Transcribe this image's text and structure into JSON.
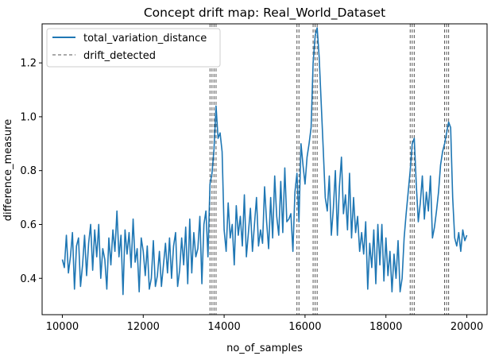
{
  "chart_data": {
    "type": "line",
    "title": "Concept drift map: Real_World_Dataset",
    "xlabel": "no_of_samples",
    "ylabel": "difference_measure",
    "xlim": [
      9500,
      20500
    ],
    "ylim": [
      0.265,
      1.345
    ],
    "xticks": [
      10000,
      12000,
      14000,
      16000,
      18000,
      20000
    ],
    "yticks": [
      0.4,
      0.6,
      0.8,
      1.0,
      1.2
    ],
    "ytick_labels": [
      "0.4",
      "0.6",
      "0.8",
      "1.0",
      "1.2"
    ],
    "grid": false,
    "legend_position": "upper-left",
    "series": [
      {
        "name": "total_variation_distance",
        "color": "#1f77b4",
        "style": "solid",
        "x": [
          10000,
          10050,
          10100,
          10150,
          10200,
          10250,
          10300,
          10350,
          10400,
          10450,
          10500,
          10550,
          10600,
          10650,
          10700,
          10750,
          10800,
          10850,
          10900,
          10950,
          11000,
          11050,
          11100,
          11150,
          11200,
          11250,
          11300,
          11350,
          11400,
          11450,
          11500,
          11550,
          11600,
          11650,
          11700,
          11750,
          11800,
          11850,
          11900,
          11950,
          12000,
          12050,
          12100,
          12150,
          12200,
          12250,
          12300,
          12350,
          12400,
          12450,
          12500,
          12550,
          12600,
          12650,
          12700,
          12750,
          12800,
          12850,
          12900,
          12950,
          13000,
          13050,
          13100,
          13150,
          13200,
          13250,
          13300,
          13350,
          13400,
          13450,
          13500,
          13550,
          13600,
          13650,
          13700,
          13750,
          13800,
          13850,
          13900,
          13950,
          14000,
          14050,
          14100,
          14150,
          14200,
          14250,
          14300,
          14350,
          14400,
          14450,
          14500,
          14550,
          14600,
          14650,
          14700,
          14750,
          14800,
          14850,
          14900,
          14950,
          15000,
          15050,
          15100,
          15150,
          15200,
          15250,
          15300,
          15350,
          15400,
          15450,
          15500,
          15550,
          15600,
          15650,
          15700,
          15750,
          15800,
          15850,
          15900,
          15950,
          16000,
          16050,
          16100,
          16150,
          16200,
          16250,
          16300,
          16350,
          16400,
          16450,
          16500,
          16550,
          16600,
          16650,
          16700,
          16750,
          16800,
          16850,
          16900,
          16950,
          17000,
          17050,
          17100,
          17150,
          17200,
          17250,
          17300,
          17350,
          17400,
          17450,
          17500,
          17550,
          17600,
          17650,
          17700,
          17750,
          17800,
          17850,
          17900,
          17950,
          18000,
          18050,
          18100,
          18150,
          18200,
          18250,
          18300,
          18350,
          18400,
          18450,
          18500,
          18550,
          18600,
          18650,
          18700,
          18750,
          18800,
          18850,
          18900,
          18950,
          19000,
          19050,
          19100,
          19150,
          19200,
          19250,
          19300,
          19350,
          19400,
          19450,
          19500,
          19550,
          19600,
          19650,
          19700,
          19750,
          19800,
          19850,
          19900,
          19950,
          20000
        ],
        "y": [
          0.47,
          0.44,
          0.56,
          0.42,
          0.48,
          0.57,
          0.36,
          0.52,
          0.55,
          0.37,
          0.45,
          0.56,
          0.41,
          0.53,
          0.6,
          0.43,
          0.58,
          0.48,
          0.6,
          0.4,
          0.51,
          0.47,
          0.36,
          0.55,
          0.45,
          0.58,
          0.5,
          0.65,
          0.48,
          0.56,
          0.34,
          0.58,
          0.49,
          0.57,
          0.44,
          0.62,
          0.46,
          0.51,
          0.35,
          0.55,
          0.5,
          0.41,
          0.52,
          0.36,
          0.4,
          0.54,
          0.37,
          0.41,
          0.5,
          0.37,
          0.45,
          0.53,
          0.42,
          0.55,
          0.4,
          0.52,
          0.57,
          0.37,
          0.43,
          0.55,
          0.45,
          0.59,
          0.38,
          0.62,
          0.42,
          0.57,
          0.48,
          0.51,
          0.63,
          0.38,
          0.6,
          0.65,
          0.48,
          0.75,
          0.79,
          0.88,
          1.04,
          0.92,
          0.94,
          0.87,
          0.58,
          0.5,
          0.68,
          0.55,
          0.6,
          0.45,
          0.67,
          0.56,
          0.63,
          0.52,
          0.71,
          0.48,
          0.57,
          0.66,
          0.5,
          0.6,
          0.7,
          0.52,
          0.58,
          0.53,
          0.74,
          0.61,
          0.51,
          0.7,
          0.55,
          0.78,
          0.63,
          0.56,
          0.76,
          0.57,
          0.81,
          0.61,
          0.62,
          0.64,
          0.5,
          0.72,
          0.79,
          0.61,
          0.9,
          0.82,
          0.75,
          0.85,
          0.9,
          0.96,
          1.2,
          1.3,
          1.33,
          1.22,
          1.05,
          0.88,
          0.7,
          0.65,
          0.78,
          0.56,
          0.66,
          0.8,
          0.56,
          0.74,
          0.85,
          0.64,
          0.71,
          0.58,
          0.79,
          0.55,
          0.7,
          0.57,
          0.63,
          0.5,
          0.57,
          0.49,
          0.61,
          0.36,
          0.53,
          0.44,
          0.58,
          0.38,
          0.6,
          0.45,
          0.6,
          0.39,
          0.55,
          0.41,
          0.5,
          0.35,
          0.49,
          0.4,
          0.54,
          0.35,
          0.4,
          0.55,
          0.64,
          0.72,
          0.8,
          0.9,
          0.92,
          0.75,
          0.61,
          0.68,
          0.78,
          0.62,
          0.72,
          0.65,
          0.78,
          0.55,
          0.59,
          0.65,
          0.72,
          0.82,
          0.87,
          0.9,
          0.94,
          0.98,
          0.96,
          0.7,
          0.55,
          0.52,
          0.57,
          0.5,
          0.58,
          0.54,
          0.56
        ],
        "marker_count": 201,
        "x_axis": "shared"
      }
    ],
    "drift_detected": {
      "name": "drift_detected",
      "color": "#555555",
      "style": "dashed",
      "x": [
        13650,
        13700,
        13750,
        13800,
        15800,
        15850,
        16200,
        16250,
        16300,
        18600,
        18650,
        18700,
        19450,
        19500,
        19550
      ]
    }
  }
}
